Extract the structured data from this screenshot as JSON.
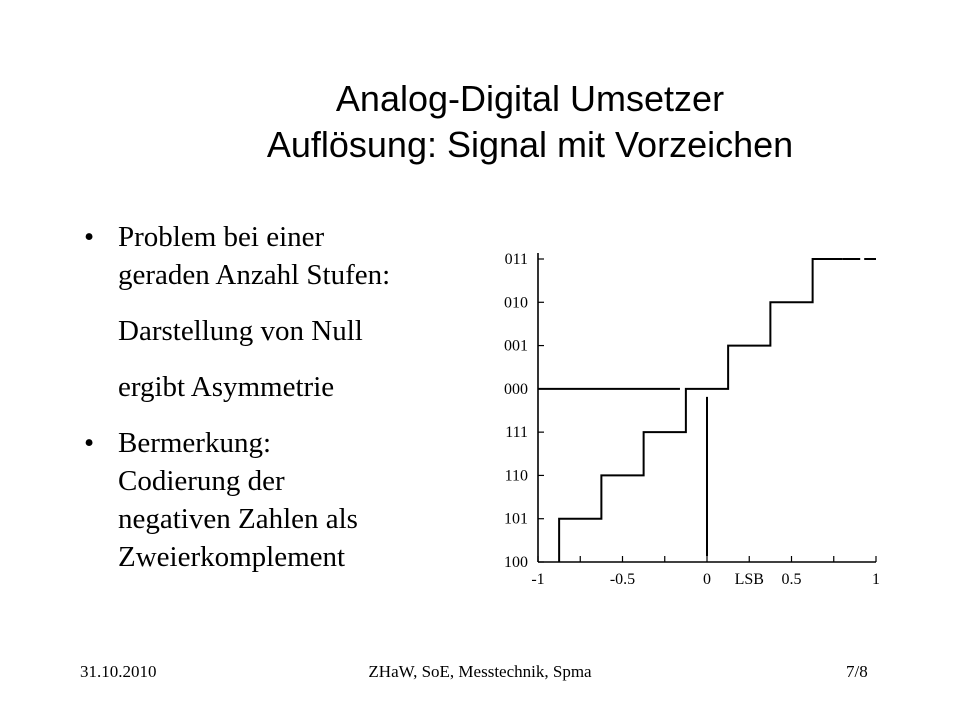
{
  "slide": {
    "title_line1": "Analog-Digital Umsetzer",
    "title_line2": "Auflösung: Signal mit Vorzeichen",
    "bullets": [
      {
        "bullet": "•",
        "lines": [
          "Problem bei einer",
          "geraden Anzahl Stufen:"
        ],
        "sublines": [
          "Darstellung von Null",
          "ergibt Asymmetrie"
        ]
      },
      {
        "bullet": "•",
        "lines": [
          "Bermerkung:",
          "Codierung der",
          "negativen Zahlen als",
          "Zweierkomplement"
        ]
      }
    ]
  },
  "chart_data": {
    "type": "line",
    "y_tick_labels": [
      "100",
      "101",
      "110",
      "111",
      "000",
      "001",
      "010",
      "011"
    ],
    "x_tick_labels": [
      "-1",
      "-0.5",
      "0",
      "LSB",
      "0.5",
      "1"
    ],
    "x_tick_values": [
      -1,
      -0.5,
      0,
      0.5,
      1
    ],
    "xlim": [
      -1,
      1
    ],
    "series": [
      {
        "style": "staircase-solid",
        "x": [
          -0.875,
          -0.875,
          -0.625,
          -0.625,
          -0.375,
          -0.375,
          -0.125,
          -0.125,
          0.125,
          0.125,
          0.375,
          0.375,
          0.625,
          0.625,
          0.8
        ],
        "y_codes": [
          "100",
          "101",
          "101",
          "110",
          "110",
          "111",
          "111",
          "000",
          "000",
          "001",
          "001",
          "010",
          "010",
          "011",
          "011"
        ]
      },
      {
        "style": "dashed-extension",
        "x": [
          0.8,
          1.0
        ],
        "y_codes": [
          "011",
          "011"
        ]
      },
      {
        "style": "solid-horizontal",
        "x": [
          -1,
          -0.16
        ],
        "y_codes": [
          "000",
          "000"
        ]
      },
      {
        "style": "vertical-at-zero",
        "x": [
          0,
          0
        ],
        "y_codes": [
          "100",
          "000"
        ]
      }
    ],
    "grid": false
  },
  "footer": {
    "date": "31.10.2010",
    "center": "ZHaW, SoE, Messtechnik, Spma",
    "page": "7/8"
  }
}
